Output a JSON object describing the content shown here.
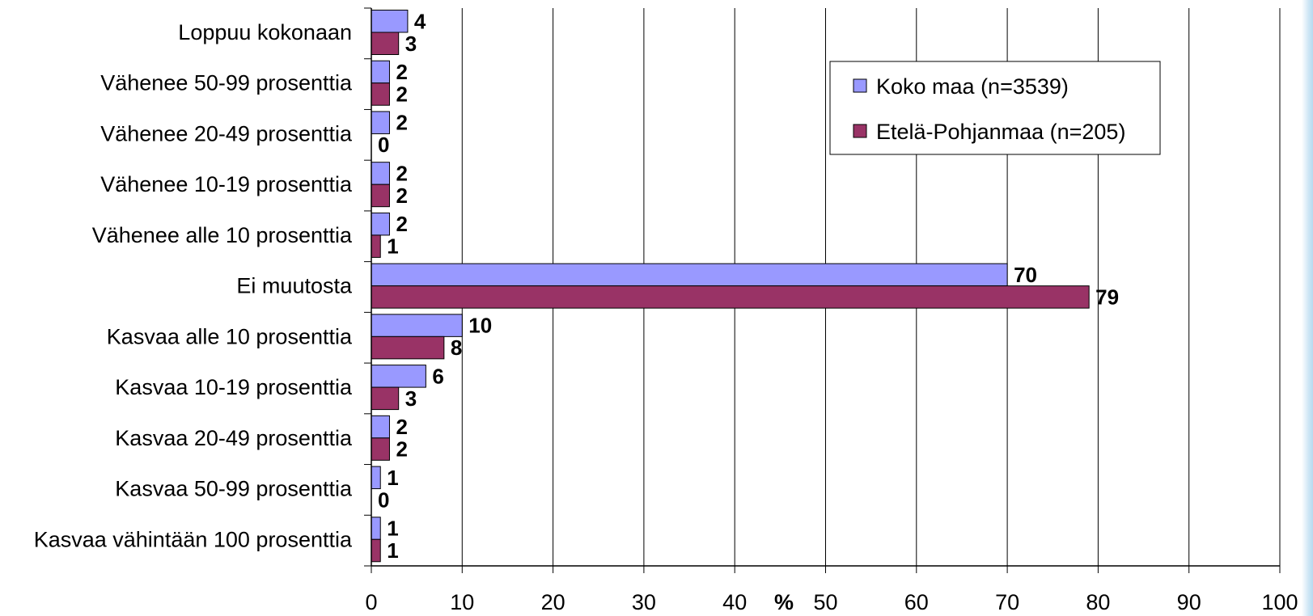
{
  "chart_data": {
    "type": "bar",
    "orientation": "horizontal",
    "categories": [
      "Loppuu kokonaan",
      "Vähenee 50-99 prosenttia",
      "Vähenee 20-49 prosenttia",
      "Vähenee 10-19 prosenttia",
      "Vähenee alle 10 prosenttia",
      "Ei muutosta",
      "Kasvaa alle 10 prosenttia",
      "Kasvaa 10-19 prosenttia",
      "Kasvaa 20-49 prosenttia",
      "Kasvaa 50-99 prosenttia",
      "Kasvaa vähintään 100 prosenttia"
    ],
    "series": [
      {
        "name": "Koko maa (n=3539)",
        "color": "#9999ff",
        "values": [
          4,
          2,
          2,
          2,
          2,
          70,
          10,
          6,
          2,
          1,
          1
        ]
      },
      {
        "name": "Etelä-Pohjanmaa (n=205)",
        "color": "#993366",
        "values": [
          3,
          2,
          0,
          2,
          1,
          79,
          8,
          3,
          2,
          0,
          1
        ]
      }
    ],
    "xlabel": "%",
    "xlim": [
      0,
      100
    ],
    "xticks": [
      0,
      10,
      20,
      30,
      40,
      50,
      60,
      70,
      80,
      90,
      100
    ],
    "grid": true,
    "legend_position": "top-right",
    "data_labels": true
  }
}
